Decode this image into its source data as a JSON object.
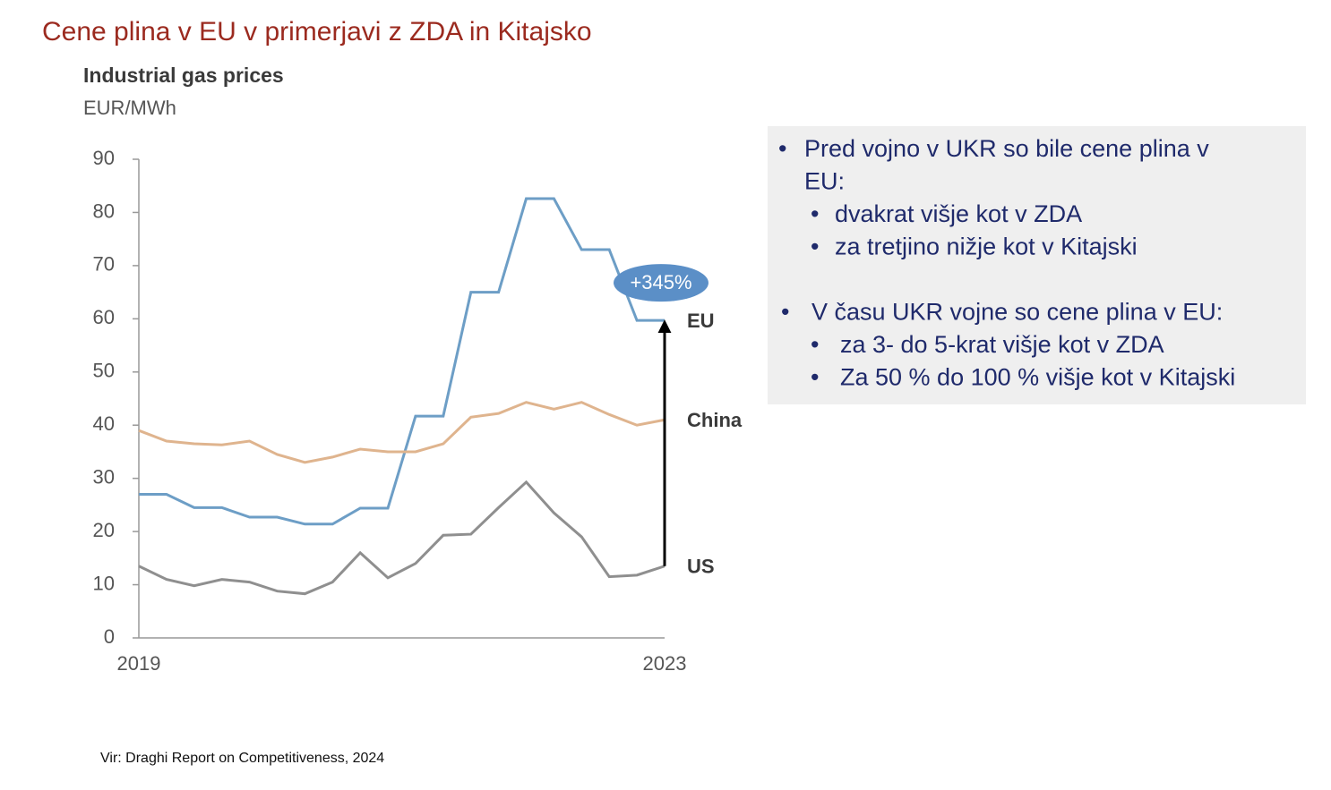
{
  "slide": {
    "title": "Cene plina v EU v primerjavi z ZDA in Kitajsko",
    "source": "Vir: Draghi Report on Competitiveness, 2024",
    "notes": [
      {
        "lines": [
          "Pred vojno v UKR so bile cene plina v",
          "EU:"
        ],
        "sub": [
          "dvakrat višje kot v ZDA",
          "za tretjino nižje kot v Kitajski"
        ]
      },
      {
        "lines": [
          "V času UKR vojne so cene plina v EU:"
        ],
        "sub": [
          "za 3- do 5-krat višje kot v ZDA",
          "Za 50 % do 100 % višje kot v Kitajski"
        ]
      }
    ]
  },
  "chart_data": {
    "type": "line",
    "title": "Industrial gas prices",
    "subtitle": "EUR/MWh",
    "categories": [
      "2019",
      null,
      null,
      null,
      null,
      null,
      null,
      null,
      null,
      null,
      null,
      null,
      null,
      null,
      null,
      null,
      null,
      null,
      null,
      "2023"
    ],
    "series": [
      {
        "name": "EU",
        "color": "#6d9ec6",
        "values": [
          27,
          27,
          24.5,
          24.5,
          22.7,
          22.7,
          21.4,
          21.4,
          24.4,
          24.4,
          41.7,
          41.7,
          65,
          65,
          82.6,
          82.6,
          73,
          73,
          59.7,
          59.7
        ]
      },
      {
        "name": "China",
        "color": "#dfb48e",
        "values": [
          39,
          37,
          36.5,
          36.3,
          37,
          34.5,
          33,
          34,
          35.5,
          35,
          35,
          36.5,
          41.5,
          42.2,
          44.3,
          43,
          44.3,
          42,
          40,
          41
        ]
      },
      {
        "name": "US",
        "color": "#8f8f8f",
        "values": [
          13.5,
          11,
          9.8,
          11,
          10.5,
          8.8,
          8.3,
          10.5,
          16,
          11.3,
          14,
          19.3,
          19.5,
          24.5,
          29.3,
          23.5,
          19,
          11.5,
          11.8,
          13.5
        ]
      }
    ],
    "annotation": "+345%",
    "ylim": [
      0,
      90
    ],
    "yticks": [
      0,
      10,
      20,
      30,
      40,
      50,
      60,
      70,
      80,
      90
    ]
  }
}
